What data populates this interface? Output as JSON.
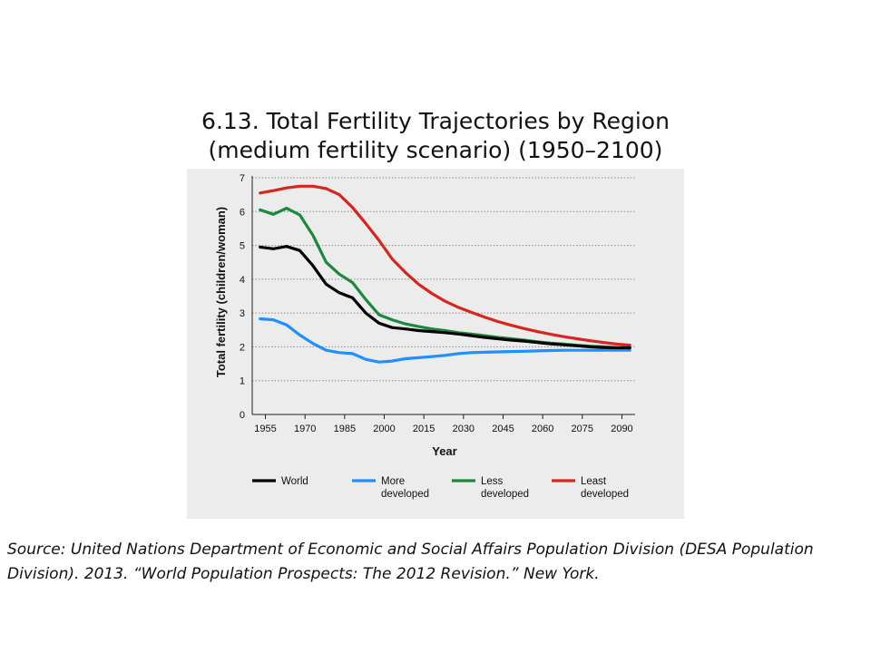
{
  "slide": {
    "title_line1": "6.13. Total Fertility Trajectories by Region",
    "title_line2": "(medium fertility scenario) (1950–2100)",
    "source": "Source: United Nations Department of Economic and Social Affairs Population Division (DESA Population Division). 2013. “World Population Prospects: The 2012 Revision.” New York."
  },
  "chart_data": {
    "type": "line",
    "xlabel": "Year",
    "ylabel": "Total fertility (children/woman)",
    "xlim": [
      1950,
      2095
    ],
    "ylim": [
      0,
      7
    ],
    "x_ticks": [
      1955,
      1970,
      1985,
      2000,
      2015,
      2030,
      2045,
      2060,
      2075,
      2090
    ],
    "y_ticks": [
      0,
      1,
      2,
      3,
      4,
      5,
      6,
      7
    ],
    "grid": true,
    "legend_position": "bottom",
    "x": [
      1953,
      1958,
      1963,
      1968,
      1973,
      1978,
      1983,
      1988,
      1993,
      1998,
      2003,
      2008,
      2013,
      2018,
      2023,
      2028,
      2033,
      2038,
      2043,
      2048,
      2053,
      2058,
      2063,
      2068,
      2073,
      2078,
      2083,
      2088,
      2093
    ],
    "series": [
      {
        "name": "World",
        "color": "#000000",
        "values": [
          4.95,
          4.9,
          4.97,
          4.85,
          4.4,
          3.85,
          3.6,
          3.45,
          3.0,
          2.7,
          2.57,
          2.53,
          2.48,
          2.45,
          2.42,
          2.38,
          2.33,
          2.28,
          2.24,
          2.2,
          2.17,
          2.13,
          2.09,
          2.06,
          2.03,
          2.0,
          1.98,
          1.97,
          1.97
        ]
      },
      {
        "name": "More developed",
        "color": "#1e90ff",
        "values": [
          2.83,
          2.8,
          2.65,
          2.35,
          2.1,
          1.9,
          1.83,
          1.8,
          1.63,
          1.55,
          1.58,
          1.65,
          1.68,
          1.71,
          1.75,
          1.8,
          1.83,
          1.84,
          1.85,
          1.86,
          1.87,
          1.88,
          1.89,
          1.9,
          1.9,
          1.9,
          1.9,
          1.9,
          1.9
        ]
      },
      {
        "name": "Less developed",
        "color": "#1a8a3a",
        "values": [
          6.05,
          5.92,
          6.1,
          5.9,
          5.3,
          4.5,
          4.15,
          3.9,
          3.4,
          2.95,
          2.8,
          2.68,
          2.6,
          2.53,
          2.48,
          2.42,
          2.38,
          2.33,
          2.28,
          2.24,
          2.2,
          2.15,
          2.11,
          2.08,
          2.05,
          2.02,
          2.0,
          1.98,
          1.97
        ]
      },
      {
        "name": "Least developed",
        "color": "#d7261e",
        "values": [
          6.55,
          6.62,
          6.7,
          6.75,
          6.75,
          6.68,
          6.5,
          6.12,
          5.65,
          5.15,
          4.6,
          4.2,
          3.85,
          3.58,
          3.35,
          3.17,
          3.02,
          2.88,
          2.75,
          2.64,
          2.54,
          2.45,
          2.37,
          2.3,
          2.24,
          2.18,
          2.13,
          2.08,
          2.05
        ]
      }
    ],
    "legend_labels": [
      {
        "line1": "World",
        "line2": ""
      },
      {
        "line1": "More",
        "line2": "developed"
      },
      {
        "line1": "Less",
        "line2": "developed"
      },
      {
        "line1": "Least",
        "line2": "developed"
      }
    ]
  }
}
